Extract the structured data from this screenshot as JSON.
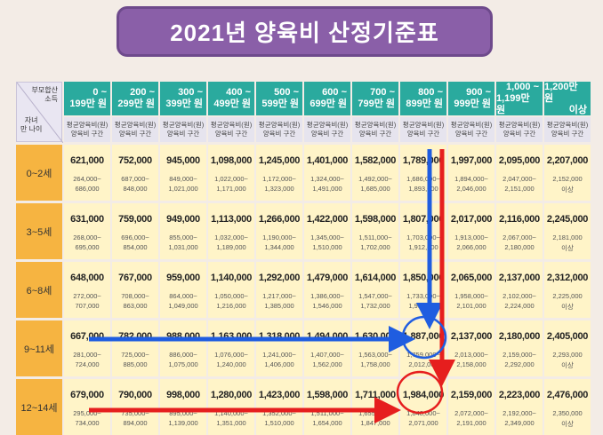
{
  "title": "2021년 양육비 산정기준표",
  "corner": {
    "top_line1": "부모합산",
    "top_line2": "소득",
    "bottom_line1": "자녀",
    "bottom_line2": "만 나이"
  },
  "sub_header": {
    "line1": "평균양육비(원)",
    "line2": "양육비 구간"
  },
  "income_brackets": [
    {
      "l1": "0 ~",
      "l2": "199만 원"
    },
    {
      "l1": "200 ~",
      "l2": "299만 원"
    },
    {
      "l1": "300 ~",
      "l2": "399만 원"
    },
    {
      "l1": "400 ~",
      "l2": "499만 원"
    },
    {
      "l1": "500 ~",
      "l2": "599만 원"
    },
    {
      "l1": "600 ~",
      "l2": "699만 원"
    },
    {
      "l1": "700 ~",
      "l2": "799만 원"
    },
    {
      "l1": "800 ~",
      "l2": "899만 원"
    },
    {
      "l1": "900 ~",
      "l2": "999만 원"
    },
    {
      "l1": "1,000 ~",
      "l2": "1,199만 원"
    },
    {
      "l1": "1,200만 원",
      "l2": "이상"
    }
  ],
  "rows": [
    {
      "age": "0~2세",
      "cells": [
        {
          "avg": "621,000",
          "r1": "264,000~",
          "r2": "686,000"
        },
        {
          "avg": "752,000",
          "r1": "687,000~",
          "r2": "848,000"
        },
        {
          "avg": "945,000",
          "r1": "849,000~",
          "r2": "1,021,000"
        },
        {
          "avg": "1,098,000",
          "r1": "1,022,000~",
          "r2": "1,171,000"
        },
        {
          "avg": "1,245,000",
          "r1": "1,172,000~",
          "r2": "1,323,000"
        },
        {
          "avg": "1,401,000",
          "r1": "1,324,000~",
          "r2": "1,491,000"
        },
        {
          "avg": "1,582,000",
          "r1": "1,492,000~",
          "r2": "1,685,000"
        },
        {
          "avg": "1,789,000",
          "r1": "1,686,000~",
          "r2": "1,893,000"
        },
        {
          "avg": "1,997,000",
          "r1": "1,894,000~",
          "r2": "2,046,000"
        },
        {
          "avg": "2,095,000",
          "r1": "2,047,000~",
          "r2": "2,151,000"
        },
        {
          "avg": "2,207,000",
          "r1": "2,152,000",
          "r2": "이상"
        }
      ]
    },
    {
      "age": "3~5세",
      "cells": [
        {
          "avg": "631,000",
          "r1": "268,000~",
          "r2": "695,000"
        },
        {
          "avg": "759,000",
          "r1": "696,000~",
          "r2": "854,000"
        },
        {
          "avg": "949,000",
          "r1": "855,000~",
          "r2": "1,031,000"
        },
        {
          "avg": "1,113,000",
          "r1": "1,032,000~",
          "r2": "1,189,000"
        },
        {
          "avg": "1,266,000",
          "r1": "1,190,000~",
          "r2": "1,344,000"
        },
        {
          "avg": "1,422,000",
          "r1": "1,345,000~",
          "r2": "1,510,000"
        },
        {
          "avg": "1,598,000",
          "r1": "1,511,000~",
          "r2": "1,702,000"
        },
        {
          "avg": "1,807,000",
          "r1": "1,703,000~",
          "r2": "1,912,000"
        },
        {
          "avg": "2,017,000",
          "r1": "1,913,000~",
          "r2": "2,066,000"
        },
        {
          "avg": "2,116,000",
          "r1": "2,067,000~",
          "r2": "2,180,000"
        },
        {
          "avg": "2,245,000",
          "r1": "2,181,000",
          "r2": "이상"
        }
      ]
    },
    {
      "age": "6~8세",
      "cells": [
        {
          "avg": "648,000",
          "r1": "272,000~",
          "r2": "707,000"
        },
        {
          "avg": "767,000",
          "r1": "708,000~",
          "r2": "863,000"
        },
        {
          "avg": "959,000",
          "r1": "864,000~",
          "r2": "1,049,000"
        },
        {
          "avg": "1,140,000",
          "r1": "1,050,000~",
          "r2": "1,216,000"
        },
        {
          "avg": "1,292,000",
          "r1": "1,217,000~",
          "r2": "1,385,000"
        },
        {
          "avg": "1,479,000",
          "r1": "1,386,000~",
          "r2": "1,546,000"
        },
        {
          "avg": "1,614,000",
          "r1": "1,547,000~",
          "r2": "1,732,000"
        },
        {
          "avg": "1,850,000",
          "r1": "1,733,000~",
          "r2": "1,957,000"
        },
        {
          "avg": "2,065,000",
          "r1": "1,958,000~",
          "r2": "2,101,000"
        },
        {
          "avg": "2,137,000",
          "r1": "2,102,000~",
          "r2": "2,224,000"
        },
        {
          "avg": "2,312,000",
          "r1": "2,225,000",
          "r2": "이상"
        }
      ]
    },
    {
      "age": "9~11세",
      "cells": [
        {
          "avg": "667,000",
          "r1": "281,000~",
          "r2": "724,000"
        },
        {
          "avg": "782,000",
          "r1": "725,000~",
          "r2": "885,000"
        },
        {
          "avg": "988,000",
          "r1": "886,000~",
          "r2": "1,075,000"
        },
        {
          "avg": "1,163,000",
          "r1": "1,076,000~",
          "r2": "1,240,000"
        },
        {
          "avg": "1,318,000",
          "r1": "1,241,000~",
          "r2": "1,406,000"
        },
        {
          "avg": "1,494,000",
          "r1": "1,407,000~",
          "r2": "1,562,000"
        },
        {
          "avg": "1,630,000",
          "r1": "1,563,000~",
          "r2": "1,758,000"
        },
        {
          "avg": "1,887,000",
          "r1": "1,759,000~",
          "r2": "2,012,000"
        },
        {
          "avg": "2,137,000",
          "r1": "2,013,000~",
          "r2": "2,158,000"
        },
        {
          "avg": "2,180,000",
          "r1": "2,159,000~",
          "r2": "2,292,000"
        },
        {
          "avg": "2,405,000",
          "r1": "2,293,000",
          "r2": "이상"
        }
      ]
    },
    {
      "age": "12~14세",
      "cells": [
        {
          "avg": "679,000",
          "r1": "295,000~",
          "r2": "734,000"
        },
        {
          "avg": "790,000",
          "r1": "735,000~",
          "r2": "894,000"
        },
        {
          "avg": "998,000",
          "r1": "895,000~",
          "r2": "1,139,000"
        },
        {
          "avg": "1,280,000",
          "r1": "1,140,000~",
          "r2": "1,351,000"
        },
        {
          "avg": "1,423,000",
          "r1": "1,352,000~",
          "r2": "1,510,000"
        },
        {
          "avg": "1,598,000",
          "r1": "1,511,000~",
          "r2": "1,654,000"
        },
        {
          "avg": "1,711,000",
          "r1": "1,655,000~",
          "r2": "1,847,000"
        },
        {
          "avg": "1,984,000",
          "r1": "1,848,000~",
          "r2": "2,071,000"
        },
        {
          "avg": "2,159,000",
          "r1": "2,072,000~",
          "r2": "2,191,000"
        },
        {
          "avg": "2,223,000",
          "r1": "2,192,000~",
          "r2": "2,349,000"
        },
        {
          "avg": "2,476,000",
          "r1": "2,350,000",
          "r2": "이상"
        }
      ]
    }
  ],
  "colors": {
    "title_bg": "#8a5fa8",
    "header_teal": "#2aaa9e",
    "row_header_orange": "#f6b441",
    "cell_yellow": "#fff4c8",
    "arrow_blue": "#1f5de0",
    "arrow_red": "#e61e1e"
  }
}
